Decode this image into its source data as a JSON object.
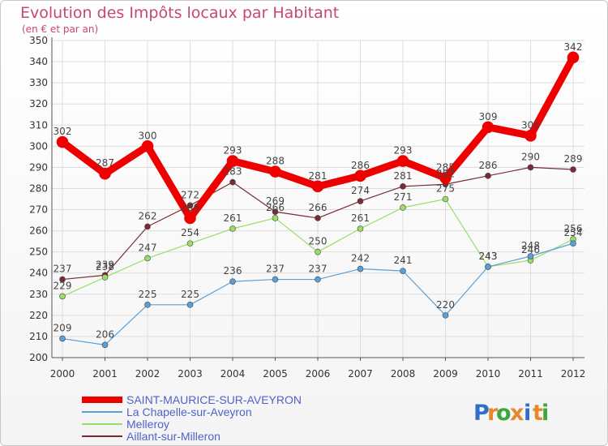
{
  "chart_data": {
    "type": "line",
    "title": "Evolution des Impôts locaux par Habitant",
    "subtitle": "(en € et par an)",
    "xlabel": "",
    "ylabel": "",
    "x": [
      "2000",
      "2001",
      "2002",
      "2003",
      "2004",
      "2005",
      "2006",
      "2007",
      "2008",
      "2009",
      "2010",
      "2011",
      "2012"
    ],
    "ylim": [
      200,
      350
    ],
    "yticks": [
      200,
      210,
      220,
      230,
      240,
      250,
      260,
      270,
      280,
      290,
      300,
      310,
      320,
      330,
      340,
      350
    ],
    "grid": true,
    "legend_position": "bottom-left",
    "series": [
      {
        "name": "SAINT-MAURICE-SUR-AVEYRON",
        "color": "#ee0000",
        "values": [
          302,
          287,
          300,
          266,
          293,
          288,
          281,
          286,
          293,
          285,
          309,
          305,
          342
        ],
        "labels": [
          "302",
          "287",
          "300",
          "266",
          "293",
          "288",
          "281",
          "286",
          "293",
          "285",
          "309",
          "305",
          "342"
        ]
      },
      {
        "name": "La Chapelle-sur-Aveyron",
        "color": "#5aa0d8",
        "values": [
          209,
          206,
          225,
          225,
          236,
          237,
          237,
          242,
          241,
          220,
          243,
          248,
          254
        ],
        "labels": [
          "209",
          "206",
          "225",
          "225",
          "236",
          "237",
          "237",
          "242",
          "241",
          "220",
          "243",
          "248",
          "254"
        ]
      },
      {
        "name": "Melleroy",
        "color": "#99dd66",
        "values": [
          229,
          238,
          247,
          254,
          261,
          266,
          250,
          261,
          271,
          275,
          243,
          246,
          256
        ],
        "labels": [
          "229",
          "238",
          "247",
          "254",
          "261",
          "266",
          "250",
          "261",
          "271",
          "275",
          "243",
          "246",
          "256"
        ]
      },
      {
        "name": "Aillant-sur-Milleron",
        "color": "#7a2a34",
        "values": [
          237,
          239,
          262,
          272,
          283,
          269,
          266,
          274,
          281,
          282,
          286,
          290,
          289
        ],
        "labels": [
          "237",
          "239",
          "262",
          "272",
          "283",
          "269",
          "266",
          "274",
          "281",
          "282",
          "286",
          "290",
          "289"
        ]
      }
    ]
  },
  "logo": {
    "letters": [
      "P",
      "r",
      "o",
      "x",
      "i",
      "t",
      "i"
    ],
    "colors": [
      "#2f6fc8",
      "#e8872b",
      "#3fa63f",
      "#e8872b",
      "#2f6fc8",
      "#e8872b",
      "#3fa63f"
    ]
  }
}
